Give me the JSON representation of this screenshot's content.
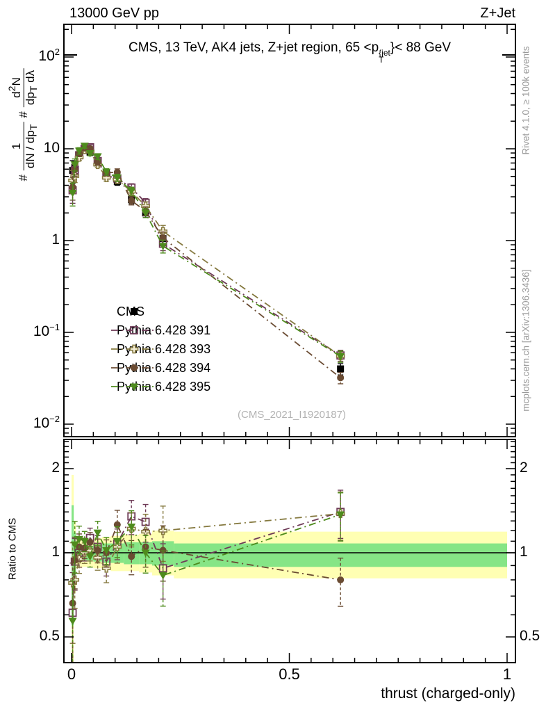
{
  "header": {
    "left": "13000 GeV pp",
    "right": "Z+Jet"
  },
  "panel_title": {
    "prefix": "CMS, 13 TeV, AK4 jets, Z+jet region, 65 <p",
    "sup": "{jet",
    "sub": "T",
    "suffix": "}< 88 GeV"
  },
  "ylabel": {
    "hash1": "#",
    "f1_num": "1",
    "f1_den": "dN / dp",
    "f1_den_sub": "T",
    "hash2": "#",
    "f2_num_a": "d",
    "f2_num_sup": "2",
    "f2_num_b": "N",
    "f2_den_a": "dp",
    "f2_den_sub": "T",
    "f2_den_b": " dλ"
  },
  "labels": {
    "ratio_y": "Ratio to CMS",
    "x": "thrust (charged-only)",
    "rivet": "Rivet 4.1.0, ≥ 100k events",
    "mcplots": "mcplots.cern.ch [arXiv:1306.3436]",
    "watermark": "(CMS_2021_I1920187)"
  },
  "legend": {
    "items": [
      {
        "label": "CMS",
        "marker": "square-filled",
        "color": "#000000",
        "line": false
      },
      {
        "label": "Pythia 6.428 391",
        "marker": "square-open",
        "color": "#6e3a57",
        "line": true
      },
      {
        "label": "Pythia 6.428 393",
        "marker": "cross-open",
        "color": "#85793f",
        "line": true
      },
      {
        "label": "Pythia 6.428 394",
        "marker": "circle-filled",
        "color": "#6a4b32",
        "line": true
      },
      {
        "label": "Pythia 6.428 395",
        "marker": "triangle-down-filled",
        "color": "#4e8b1d",
        "line": true
      }
    ]
  },
  "chart_data": {
    "type": "scatter",
    "title": "CMS, 13 TeV, AK4 jets, Z+jet region, 65 < pT{jet} < 88 GeV",
    "xlabel": "thrust (charged-only)",
    "ylabel_main": "# 1/(dN/dpT) # d2N/(dpT dlambda)",
    "ylabel_ratio": "Ratio to CMS",
    "xlim": [
      -0.0175,
      1.019
    ],
    "main_ylim_log10": [
      -2.136,
      2.356
    ],
    "ratio_ylim": [
      0.404,
      2.54
    ],
    "x_bin_edges": [
      0,
      0.005,
      0.01,
      0.025,
      0.035,
      0.05,
      0.07,
      0.09,
      0.12,
      0.155,
      0.185,
      0.235,
      1.0
    ],
    "x": [
      0.0025,
      0.0075,
      0.0175,
      0.03,
      0.0425,
      0.06,
      0.08,
      0.105,
      0.1375,
      0.17,
      0.21,
      0.6175
    ],
    "cms_values": [
      5.8,
      6.3,
      8.5,
      9.8,
      9.2,
      7.0,
      5.5,
      4.4,
      2.8,
      2.0,
      1.05,
      0.04
    ],
    "error_frac": [
      0.28,
      0.15,
      0.08,
      0.06,
      0.06,
      0.07,
      0.08,
      0.09,
      0.1,
      0.11,
      0.16,
      0.14
    ],
    "value_rule": "mc_value[i] = cms_values[i] * ratio_to_cms[i]",
    "series": [
      {
        "name": "Pythia 6.428 391",
        "marker": "square-open",
        "color": "#6e3a57",
        "ratio_to_cms": [
          0.61,
          0.93,
          1.0,
          1.02,
          1.13,
          1.05,
          0.93,
          1.08,
          1.35,
          1.29,
          0.88,
          1.4
        ]
      },
      {
        "name": "Pythia 6.428 393",
        "marker": "cross-open",
        "color": "#85793f",
        "ratio_to_cms": [
          0.78,
          0.8,
          0.95,
          1.0,
          1.02,
          0.96,
          0.88,
          1.05,
          1.22,
          1.19,
          1.2,
          1.38
        ]
      },
      {
        "name": "Pythia 6.428 394",
        "marker": "circle-filled",
        "color": "#6a4b32",
        "ratio_to_cms": [
          0.66,
          0.94,
          1.05,
          1.04,
          1.09,
          1.02,
          1.0,
          1.26,
          0.97,
          1.05,
          1.02,
          0.8
        ]
      },
      {
        "name": "Pythia 6.428 395",
        "marker": "triangle-down-filled",
        "color": "#4e8b1d",
        "ratio_to_cms": [
          0.57,
          1.07,
          1.12,
          1.1,
          0.97,
          1.18,
          1.02,
          1.1,
          1.24,
          1.0,
          0.83,
          1.37
        ]
      }
    ],
    "ratio_bands": {
      "yellow": [
        [
          0.4,
          1.9
        ],
        [
          0.72,
          1.3
        ],
        [
          0.88,
          1.13
        ],
        [
          0.89,
          1.12
        ],
        [
          0.89,
          1.12
        ],
        [
          0.88,
          1.13
        ],
        [
          0.87,
          1.14
        ],
        [
          0.86,
          1.15
        ],
        [
          0.86,
          1.16
        ],
        [
          0.85,
          1.17
        ],
        [
          0.83,
          1.2
        ],
        [
          0.81,
          1.19
        ]
      ],
      "green": [
        [
          0.55,
          1.48
        ],
        [
          0.82,
          1.18
        ],
        [
          0.93,
          1.07
        ],
        [
          0.94,
          1.06
        ],
        [
          0.94,
          1.06
        ],
        [
          0.93,
          1.07
        ],
        [
          0.92,
          1.08
        ],
        [
          0.92,
          1.08
        ],
        [
          0.91,
          1.09
        ],
        [
          0.91,
          1.09
        ],
        [
          0.9,
          1.1
        ],
        [
          0.89,
          1.08
        ]
      ]
    },
    "axes": {
      "x_ticks": [
        {
          "label": "0",
          "v": 0
        },
        {
          "label": "0.5",
          "v": 0.5
        },
        {
          "label": "1",
          "v": 1
        }
      ],
      "x_minor_step": 0.05,
      "main_y_ticks": [
        {
          "base": "10",
          "exp": "2",
          "v": 100
        },
        {
          "base": "10",
          "exp": "",
          "v": 10
        },
        {
          "base": "1",
          "exp": "",
          "v": 1
        },
        {
          "base": "10",
          "exp": "−1",
          "v": 0.1
        },
        {
          "base": "10",
          "exp": "−2",
          "v": 0.01
        }
      ],
      "ratio_y_ticks": [
        {
          "label": "2",
          "v": 2
        },
        {
          "label": "1",
          "v": 1
        },
        {
          "label": "0.5",
          "v": 0.5
        }
      ],
      "grid": false,
      "main_scale": "log",
      "ratio_scale": "log"
    }
  },
  "colors": {
    "band_yellow": "#ffffb3",
    "band_green": "#86e586",
    "frame": "#000000",
    "side_text": "#999999",
    "watermark": "#b3b3b3"
  }
}
